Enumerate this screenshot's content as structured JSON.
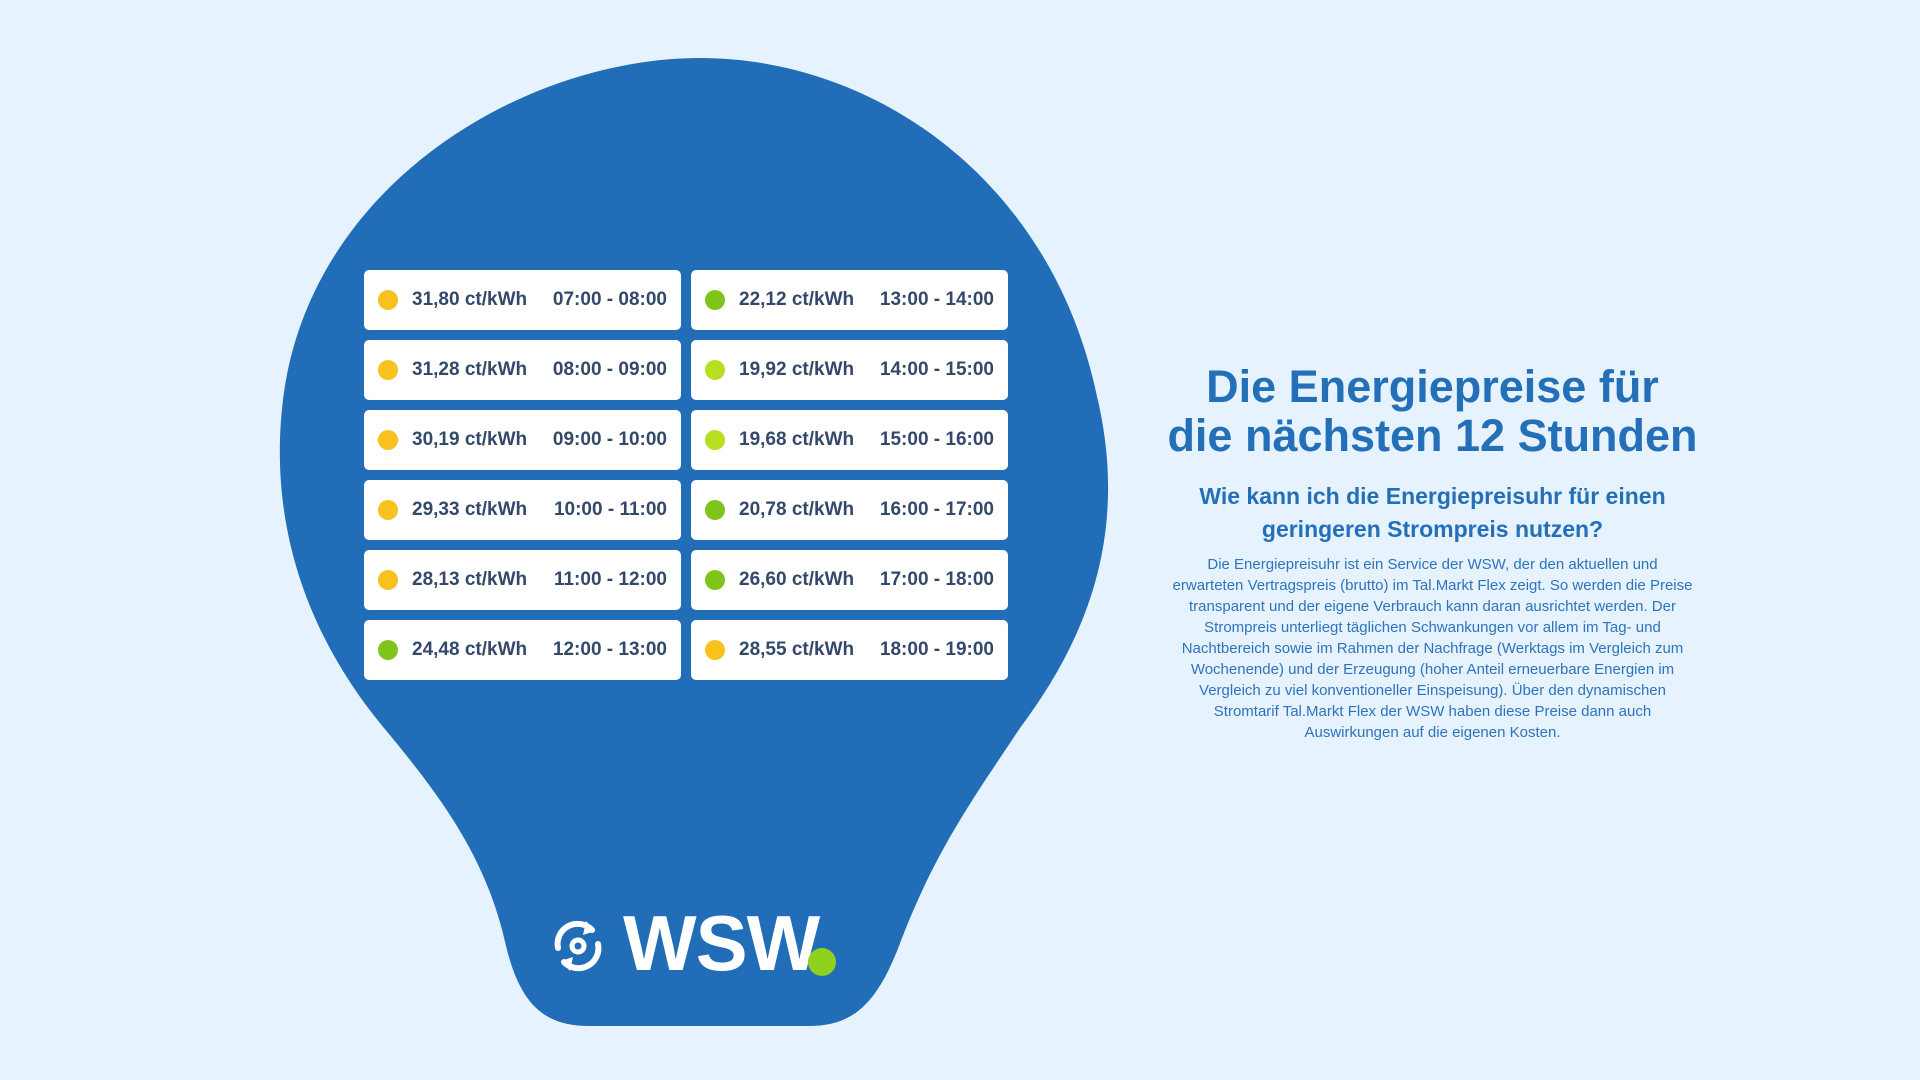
{
  "colors": {
    "background": "#e6f2fd",
    "bulb_blue": "#216db8",
    "card_white": "#ffffff",
    "text_dark": "#34486a",
    "title_blue": "#236fb8",
    "yellow": "#f8c11d",
    "light_green": "#b7df1f",
    "green": "#7fc41b",
    "logo_dot": "#8fd11d"
  },
  "prices": [
    {
      "price": "31,80 ct/kWh",
      "time": "07:00 - 08:00",
      "dot_color": "#f8c11d"
    },
    {
      "price": "22,12 ct/kWh",
      "time": "13:00 - 14:00",
      "dot_color": "#7fc41b"
    },
    {
      "price": "31,28 ct/kWh",
      "time": "08:00 - 09:00",
      "dot_color": "#f8c11d"
    },
    {
      "price": "19,92 ct/kWh",
      "time": "14:00 - 15:00",
      "dot_color": "#b7df1f"
    },
    {
      "price": "30,19 ct/kWh",
      "time": "09:00 - 10:00",
      "dot_color": "#f8c11d"
    },
    {
      "price": "19,68 ct/kWh",
      "time": "15:00 - 16:00",
      "dot_color": "#b7df1f"
    },
    {
      "price": "29,33 ct/kWh",
      "time": "10:00 - 11:00",
      "dot_color": "#f8c11d"
    },
    {
      "price": "20,78 ct/kWh",
      "time": "16:00 - 17:00",
      "dot_color": "#7fc41b"
    },
    {
      "price": "28,13 ct/kWh",
      "time": "11:00 - 12:00",
      "dot_color": "#f8c11d"
    },
    {
      "price": "26,60 ct/kWh",
      "time": "17:00 - 18:00",
      "dot_color": "#7fc41b"
    },
    {
      "price": "24,48 ct/kWh",
      "time": "12:00 - 13:00",
      "dot_color": "#7fc41b"
    },
    {
      "price": "28,55 ct/kWh",
      "time": "18:00 - 19:00",
      "dot_color": "#f8c11d"
    }
  ],
  "logo": {
    "text": "WSW",
    "icon": "refresh-cycle-icon"
  },
  "info": {
    "title_line1": "Die Energiepreise für",
    "title_line2": "die nächsten 12 Stunden",
    "subtitle_line1": "Wie kann ich die Energiepreisuhr für einen",
    "subtitle_line2": "geringeren Strompreis nutzen?",
    "body_lines": [
      "Die Energiepreisuhr ist ein Service der WSW, der den aktuellen und",
      "erwarteten Vertragspreis (brutto) im Tal.Markt Flex zeigt. So werden die Preise",
      "transparent und der eigene Verbrauch kann daran ausrichtet werden. Der",
      "Strompreis unterliegt täglichen Schwankungen vor allem im Tag- und",
      "Nachtbereich sowie im Rahmen der Nachfrage (Werktags im Vergleich zum",
      "Wochenende) und der Erzeugung (hoher Anteil erneuerbare Energien im",
      "Vergleich zu viel konventioneller Einspeisung). Über den dynamischen",
      "Stromtarif Tal.Markt Flex der WSW haben diese Preise dann auch",
      "Auswirkungen auf die eigenen Kosten."
    ]
  }
}
